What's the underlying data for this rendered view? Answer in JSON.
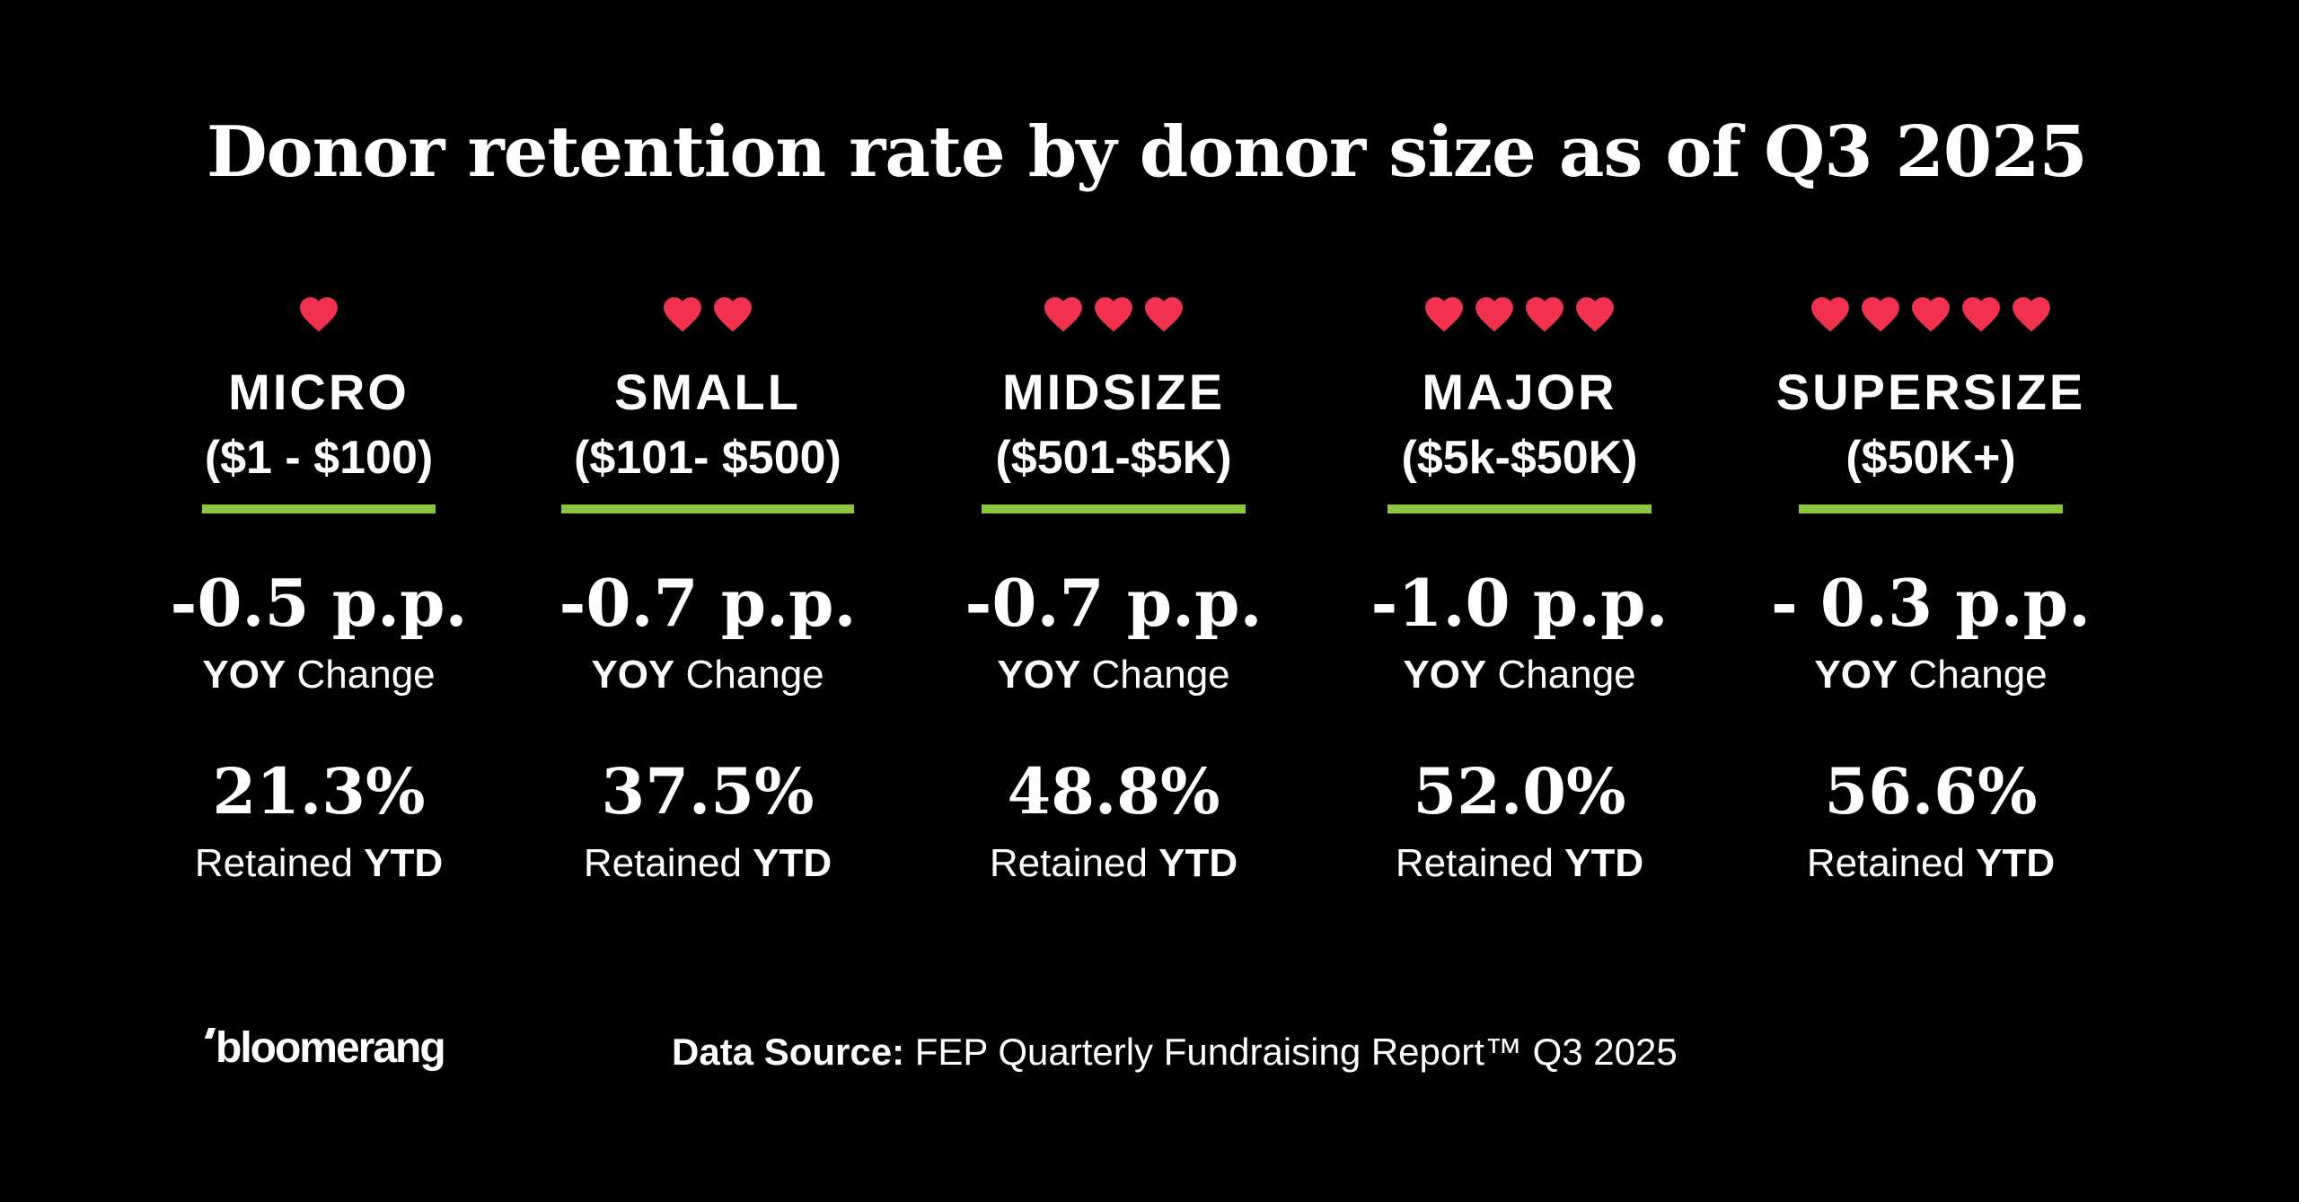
{
  "title": "Donor retention rate by donor size as of Q3 2025",
  "colors": {
    "background": "#000000",
    "text": "#ffffff",
    "heart": "#f0324f",
    "underline": "#8dc63f"
  },
  "icon": "heart-icon",
  "yoy_label": {
    "strong": "YOY",
    "rest": " Change"
  },
  "retained_label": {
    "rest": "Retained ",
    "strong": "YTD"
  },
  "categories": [
    {
      "hearts": 1,
      "name": "MICRO",
      "range": "($1 - $100)",
      "yoy": "-0.5 p.p.",
      "retained": "21.3%"
    },
    {
      "hearts": 2,
      "name": "SMALL",
      "range": "($101- $500)",
      "yoy": "-0.7 p.p.",
      "retained": "37.5%"
    },
    {
      "hearts": 3,
      "name": "MIDSIZE",
      "range": "($501-$5K)",
      "yoy": "-0.7 p.p.",
      "retained": "48.8%"
    },
    {
      "hearts": 4,
      "name": "MAJOR",
      "range": "($5k-$50K)",
      "yoy": "-1.0 p.p.",
      "retained": "52.0%"
    },
    {
      "hearts": 5,
      "name": "SUPERSIZE",
      "range": "($50K+)",
      "yoy": "- 0.3 p.p.",
      "retained": "56.6%"
    }
  ],
  "footer": {
    "brand": "bloomerang",
    "source_label": "Data Source:",
    "source_text": " FEP Quarterly Fundraising Report™ Q3 2025"
  }
}
